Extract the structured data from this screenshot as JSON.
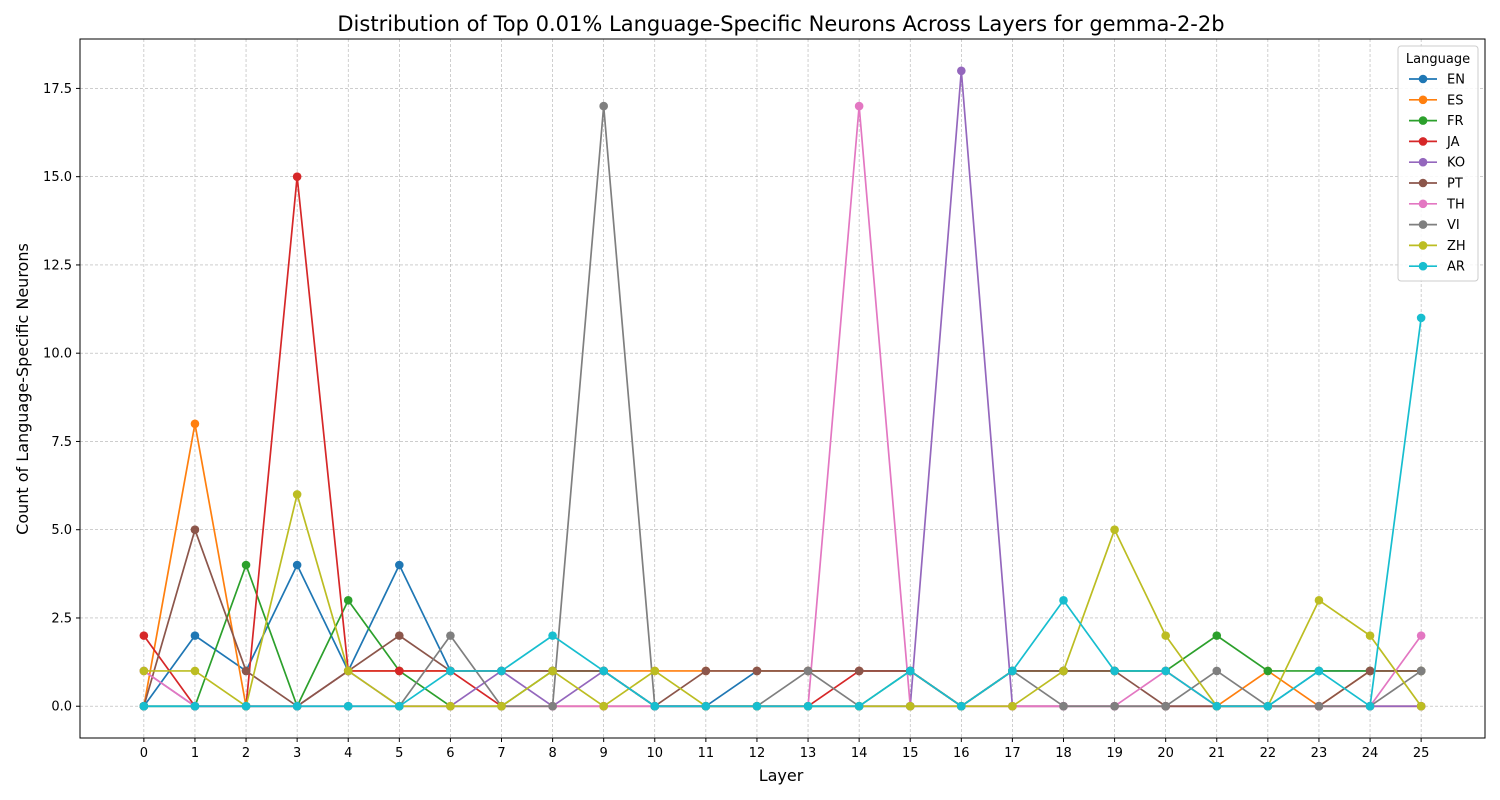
{
  "chart_data": {
    "type": "line",
    "title": "Distribution of Top 0.01% Language-Specific Neurons Across Layers for gemma-2-2b",
    "xlabel": "Layer",
    "ylabel": "Count of Language-Specific Neurons",
    "x": [
      0,
      1,
      2,
      3,
      4,
      5,
      6,
      7,
      8,
      9,
      10,
      11,
      12,
      13,
      14,
      15,
      16,
      17,
      18,
      19,
      20,
      21,
      22,
      23,
      24,
      25
    ],
    "xlim": [
      -1.25,
      26.25
    ],
    "ylim": [
      -0.9,
      18.9
    ],
    "yticks": [
      0.0,
      2.5,
      5.0,
      7.5,
      10.0,
      12.5,
      15.0,
      17.5
    ],
    "ytick_labels": [
      "0.0",
      "2.5",
      "5.0",
      "7.5",
      "10.0",
      "12.5",
      "15.0",
      "17.5"
    ],
    "grid": true,
    "legend": {
      "title": "Language",
      "placement": "top-right"
    },
    "series": [
      {
        "name": "EN",
        "color": "#1f77b4",
        "values": [
          0,
          2,
          1,
          4,
          1,
          4,
          1,
          1,
          1,
          1,
          0,
          0,
          1,
          1,
          1,
          1,
          0,
          1,
          1,
          1,
          1,
          0,
          0,
          1,
          1,
          1
        ]
      },
      {
        "name": "ES",
        "color": "#ff7f0e",
        "values": [
          0,
          8,
          0,
          0,
          1,
          1,
          1,
          1,
          1,
          1,
          1,
          1,
          1,
          1,
          1,
          1,
          0,
          1,
          1,
          1,
          1,
          0,
          1,
          0,
          1,
          1
        ]
      },
      {
        "name": "FR",
        "color": "#2ca02c",
        "values": [
          0,
          0,
          4,
          0,
          3,
          1,
          0,
          0,
          1,
          1,
          0,
          0,
          0,
          0,
          0,
          1,
          0,
          1,
          1,
          1,
          1,
          2,
          1,
          1,
          1,
          1
        ]
      },
      {
        "name": "JA",
        "color": "#d62728",
        "values": [
          2,
          0,
          0,
          15,
          1,
          1,
          1,
          0,
          0,
          0,
          0,
          0,
          0,
          0,
          1,
          1,
          0,
          0,
          0,
          0,
          0,
          0,
          0,
          0,
          0,
          0
        ]
      },
      {
        "name": "KO",
        "color": "#9467bd",
        "values": [
          1,
          0,
          0,
          0,
          1,
          0,
          0,
          1,
          0,
          1,
          0,
          0,
          0,
          0,
          0,
          0,
          18,
          0,
          0,
          0,
          0,
          0,
          0,
          0,
          0,
          0
        ]
      },
      {
        "name": "PT",
        "color": "#8c564b",
        "values": [
          0,
          5,
          1,
          0,
          1,
          2,
          1,
          1,
          1,
          1,
          0,
          1,
          1,
          1,
          1,
          1,
          0,
          1,
          1,
          1,
          0,
          0,
          0,
          0,
          1,
          1
        ]
      },
      {
        "name": "TH",
        "color": "#e377c2",
        "values": [
          1,
          0,
          0,
          0,
          0,
          0,
          0,
          0,
          0,
          0,
          0,
          0,
          0,
          0,
          17,
          0,
          0,
          0,
          0,
          0,
          1,
          0,
          0,
          0,
          0,
          2
        ]
      },
      {
        "name": "VI",
        "color": "#7f7f7f",
        "values": [
          0,
          0,
          0,
          0,
          0,
          0,
          2,
          0,
          0,
          17,
          0,
          0,
          0,
          1,
          0,
          0,
          0,
          1,
          0,
          0,
          0,
          1,
          0,
          0,
          0,
          1
        ]
      },
      {
        "name": "ZH",
        "color": "#bcbd22",
        "values": [
          1,
          1,
          0,
          6,
          1,
          0,
          0,
          0,
          1,
          0,
          1,
          0,
          0,
          0,
          0,
          0,
          0,
          0,
          1,
          5,
          2,
          0,
          0,
          3,
          2,
          0
        ]
      },
      {
        "name": "AR",
        "color": "#17becf",
        "values": [
          0,
          0,
          0,
          0,
          0,
          0,
          1,
          1,
          2,
          1,
          0,
          0,
          0,
          0,
          0,
          1,
          0,
          1,
          3,
          1,
          1,
          0,
          0,
          1,
          0,
          11
        ]
      }
    ]
  }
}
